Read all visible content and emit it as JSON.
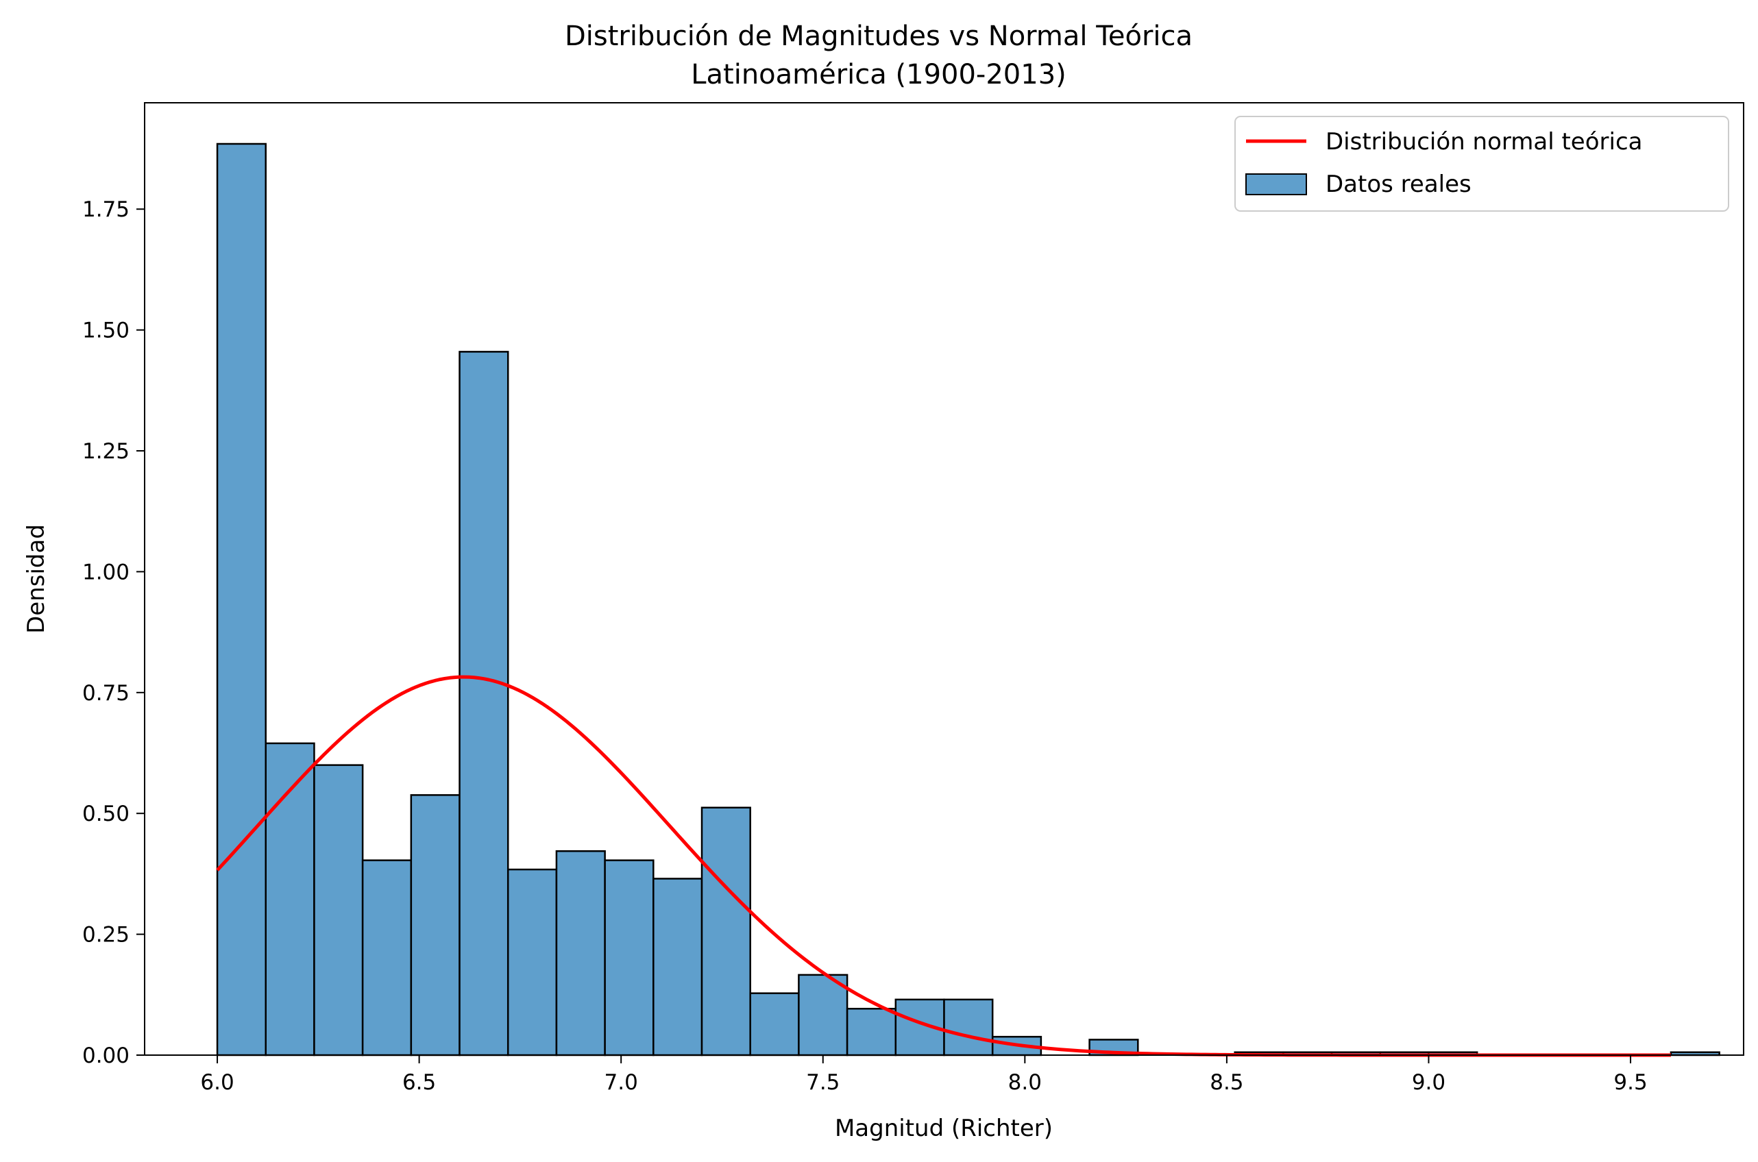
{
  "chart_data": {
    "type": "bar",
    "title": "Distribución de Magnitudes vs Normal Teórica",
    "subtitle": "Latinoamérica (1900-2013)",
    "xlabel": "Magnitud (Richter)",
    "ylabel": "Densidad",
    "xlim": [
      5.82,
      9.78
    ],
    "ylim": [
      0,
      1.97
    ],
    "x_ticks": [
      6.0,
      6.5,
      7.0,
      7.5,
      8.0,
      8.5,
      9.0,
      9.5
    ],
    "x_tick_labels": [
      "6.0",
      "6.5",
      "7.0",
      "7.5",
      "8.0",
      "8.5",
      "9.0",
      "9.5"
    ],
    "y_ticks": [
      0,
      0.25,
      0.5,
      0.75,
      1.0,
      1.25,
      1.5,
      1.75
    ],
    "y_tick_labels": [
      "0.00",
      "0.25",
      "0.50",
      "0.75",
      "1.00",
      "1.25",
      "1.50",
      "1.75"
    ],
    "grid": false,
    "legend": {
      "position": "top-right",
      "entries": [
        "Distribución normal teórica",
        "Datos reales"
      ]
    },
    "series": [
      {
        "name": "Datos reales",
        "type": "histogram",
        "color": "#5f9fcc",
        "edge_color": "#000000",
        "bin_start": 6.0,
        "bin_width": 0.12,
        "values": [
          1.885,
          0.645,
          0.6,
          0.403,
          0.538,
          1.455,
          0.384,
          0.422,
          0.403,
          0.365,
          0.512,
          0.128,
          0.166,
          0.096,
          0.115,
          0.115,
          0.038,
          0,
          0.032,
          0,
          0,
          0.006,
          0.006,
          0.006,
          0.006,
          0.006,
          0,
          0,
          0,
          0,
          0.006
        ]
      },
      {
        "name": "Distribución normal teórica",
        "type": "line",
        "color": "#ff0000",
        "mean": 6.61,
        "std": 0.51,
        "x_range": [
          6.0,
          9.6
        ]
      }
    ]
  }
}
